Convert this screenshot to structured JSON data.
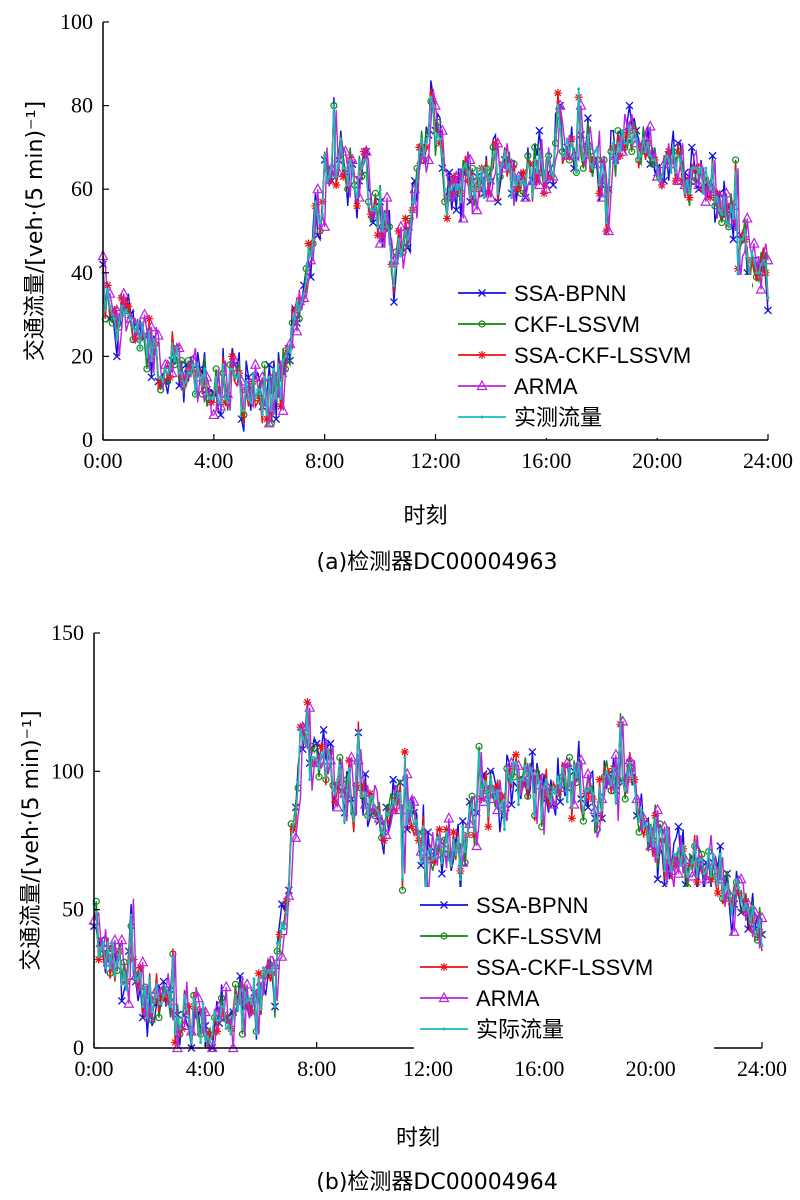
{
  "chart_data": [
    {
      "type": "line",
      "id": "a",
      "caption": "(a)检测器DC00004963",
      "xlabel": "时刻",
      "ylabel": "交通流量/[veh·(5 min)⁻¹]",
      "x_ticks": [
        "0:00",
        "4:00",
        "8:00",
        "12:00",
        "16:00",
        "20:00",
        "24:00"
      ],
      "y_ticks": [
        "0",
        "20",
        "40",
        "60",
        "80",
        "100"
      ],
      "xlim": [
        0,
        24
      ],
      "ylim": [
        0,
        100
      ],
      "legend_position": "lower-right",
      "anchors": [
        [
          0,
          38
        ],
        [
          0.5,
          27
        ],
        [
          1,
          30
        ],
        [
          1.5,
          24
        ],
        [
          2,
          20
        ],
        [
          2.5,
          18
        ],
        [
          3,
          17
        ],
        [
          3.5,
          15
        ],
        [
          4,
          13
        ],
        [
          4.5,
          13
        ],
        [
          5,
          12
        ],
        [
          5.5,
          11
        ],
        [
          6,
          11
        ],
        [
          6.3,
          13
        ],
        [
          6.7,
          20
        ],
        [
          7,
          28
        ],
        [
          7.3,
          38
        ],
        [
          7.6,
          50
        ],
        [
          7.9,
          58
        ],
        [
          8.3,
          65
        ],
        [
          8.6,
          70
        ],
        [
          9,
          63
        ],
        [
          9.5,
          62
        ],
        [
          10,
          55
        ],
        [
          10.5,
          42
        ],
        [
          11,
          50
        ],
        [
          11.5,
          68
        ],
        [
          11.8,
          80
        ],
        [
          12.2,
          66
        ],
        [
          12.6,
          62
        ],
        [
          13,
          60
        ],
        [
          13.5,
          62
        ],
        [
          14,
          64
        ],
        [
          14.5,
          65
        ],
        [
          15,
          60
        ],
        [
          15.5,
          64
        ],
        [
          16,
          66
        ],
        [
          16.5,
          70
        ],
        [
          17,
          72
        ],
        [
          17.5,
          68
        ],
        [
          18,
          64
        ],
        [
          18.5,
          66
        ],
        [
          19,
          75
        ],
        [
          19.5,
          70
        ],
        [
          20,
          68
        ],
        [
          20.5,
          66
        ],
        [
          21,
          64
        ],
        [
          21.5,
          66
        ],
        [
          22,
          62
        ],
        [
          22.5,
          55
        ],
        [
          23,
          48
        ],
        [
          23.5,
          42
        ],
        [
          24,
          38
        ]
      ],
      "series": [
        {
          "name": "SSA-BPNN",
          "color": "#1010e0",
          "marker": "x",
          "values": []
        },
        {
          "name": "CKF-LSSVM",
          "color": "#118811",
          "marker": "o",
          "values": []
        },
        {
          "name": "SSA-CKF-LSSVM",
          "color": "#ee1111",
          "marker": "*",
          "values": []
        },
        {
          "name": "ARMA",
          "color": "#bb22dd",
          "marker": "^",
          "values": []
        },
        {
          "name": "实测流量",
          "color": "#18bcbc",
          "marker": ".",
          "values": []
        }
      ]
    },
    {
      "type": "line",
      "id": "b",
      "caption": "(b)检测器DC00004964",
      "xlabel": "时刻",
      "ylabel": "交通流量/[veh·(5 min)⁻¹]",
      "x_ticks": [
        "0:00",
        "4:00",
        "8:00",
        "12:00",
        "16:00",
        "20:00",
        "24:00"
      ],
      "y_ticks": [
        "0",
        "50",
        "100",
        "150"
      ],
      "xlim": [
        0,
        24
      ],
      "ylim": [
        0,
        150
      ],
      "legend_position": "lower-center",
      "anchors": [
        [
          0,
          40
        ],
        [
          0.5,
          35
        ],
        [
          1,
          28
        ],
        [
          1.5,
          22
        ],
        [
          2,
          18
        ],
        [
          2.5,
          15
        ],
        [
          3,
          12
        ],
        [
          3.5,
          10
        ],
        [
          4,
          8
        ],
        [
          4.5,
          9
        ],
        [
          5,
          12
        ],
        [
          5.5,
          16
        ],
        [
          6,
          20
        ],
        [
          6.5,
          28
        ],
        [
          6.8,
          40
        ],
        [
          7.1,
          70
        ],
        [
          7.4,
          110
        ],
        [
          7.7,
          115
        ],
        [
          8,
          105
        ],
        [
          8.5,
          100
        ],
        [
          9,
          95
        ],
        [
          9.5,
          92
        ],
        [
          10,
          88
        ],
        [
          10.5,
          82
        ],
        [
          11,
          85
        ],
        [
          11.5,
          80
        ],
        [
          12,
          68
        ],
        [
          12.5,
          70
        ],
        [
          13,
          75
        ],
        [
          13.5,
          82
        ],
        [
          14,
          88
        ],
        [
          14.5,
          92
        ],
        [
          15,
          96
        ],
        [
          15.5,
          94
        ],
        [
          16,
          90
        ],
        [
          16.5,
          94
        ],
        [
          17,
          96
        ],
        [
          17.5,
          92
        ],
        [
          18,
          88
        ],
        [
          18.5,
          95
        ],
        [
          19,
          102
        ],
        [
          19.5,
          90
        ],
        [
          20,
          80
        ],
        [
          20.5,
          72
        ],
        [
          21,
          68
        ],
        [
          21.5,
          66
        ],
        [
          22,
          70
        ],
        [
          22.5,
          62
        ],
        [
          23,
          55
        ],
        [
          23.5,
          45
        ],
        [
          24,
          38
        ]
      ],
      "series": [
        {
          "name": "SSA-BPNN",
          "color": "#1010e0",
          "marker": "x",
          "values": []
        },
        {
          "name": "CKF-LSSVM",
          "color": "#118811",
          "marker": "o",
          "values": []
        },
        {
          "name": "SSA-CKF-LSSVM",
          "color": "#ee1111",
          "marker": "*",
          "values": []
        },
        {
          "name": "ARMA",
          "color": "#bb22dd",
          "marker": "^",
          "values": []
        },
        {
          "name": "实际流量",
          "color": "#18bcbc",
          "marker": ".",
          "values": []
        }
      ]
    }
  ]
}
